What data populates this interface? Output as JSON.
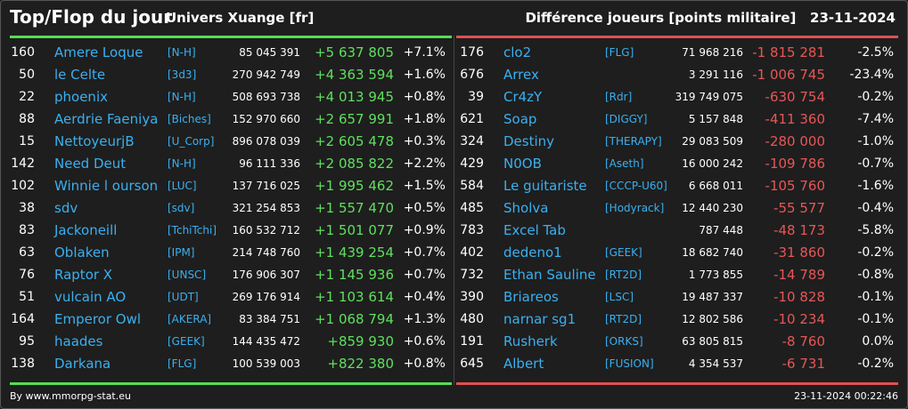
{
  "header": {
    "title": "Top/Flop du jour",
    "subtitle": "Univers Xuange [fr]",
    "metric": "Différence joueurs [points militaire]",
    "date": "23-11-2024"
  },
  "colors": {
    "positive": "#5ee05e",
    "negative": "#e85656",
    "link": "#3ab0f0",
    "background": "#1e1e1e"
  },
  "top": [
    {
      "rank": "160",
      "name": "Amere Loque",
      "tag": "[N-H]",
      "points": "85 045 391",
      "delta": "+5 637 805",
      "pct": "+7.1%"
    },
    {
      "rank": "50",
      "name": "le Celte",
      "tag": "[3d3]",
      "points": "270 942 749",
      "delta": "+4 363 594",
      "pct": "+1.6%"
    },
    {
      "rank": "22",
      "name": "phoenix",
      "tag": "[N-H]",
      "points": "508 693 738",
      "delta": "+4 013 945",
      "pct": "+0.8%"
    },
    {
      "rank": "88",
      "name": "Aerdrie Faeniya",
      "tag": "[Biches]",
      "points": "152 970 660",
      "delta": "+2 657 991",
      "pct": "+1.8%"
    },
    {
      "rank": "15",
      "name": "NettoyeurjB",
      "tag": "[U_Corp]",
      "points": "896 078 039",
      "delta": "+2 605 478",
      "pct": "+0.3%"
    },
    {
      "rank": "142",
      "name": "Need Deut",
      "tag": "[N-H]",
      "points": "96 111 336",
      "delta": "+2 085 822",
      "pct": "+2.2%"
    },
    {
      "rank": "102",
      "name": "Winnie l ourson",
      "tag": "[LUC]",
      "points": "137 716 025",
      "delta": "+1 995 462",
      "pct": "+1.5%"
    },
    {
      "rank": "38",
      "name": "sdv",
      "tag": "[sdv]",
      "points": "321 254 853",
      "delta": "+1 557 470",
      "pct": "+0.5%"
    },
    {
      "rank": "83",
      "name": "Jackoneill",
      "tag": "[TchiTchi]",
      "points": "160 532 712",
      "delta": "+1 501 077",
      "pct": "+0.9%"
    },
    {
      "rank": "63",
      "name": "Oblaken",
      "tag": "[IPM]",
      "points": "214 748 760",
      "delta": "+1 439 254",
      "pct": "+0.7%"
    },
    {
      "rank": "76",
      "name": "Raptor X",
      "tag": "[UNSC]",
      "points": "176 906 307",
      "delta": "+1 145 936",
      "pct": "+0.7%"
    },
    {
      "rank": "51",
      "name": "vulcain AO",
      "tag": "[UDT]",
      "points": "269 176 914",
      "delta": "+1 103 614",
      "pct": "+0.4%"
    },
    {
      "rank": "164",
      "name": "Emperor Owl",
      "tag": "[AKERA]",
      "points": "83 384 751",
      "delta": "+1 068 794",
      "pct": "+1.3%"
    },
    {
      "rank": "95",
      "name": "haades",
      "tag": "[GEEK]",
      "points": "144 435 472",
      "delta": "+859 930",
      "pct": "+0.6%"
    },
    {
      "rank": "138",
      "name": "Darkana",
      "tag": "[FLG]",
      "points": "100 539 003",
      "delta": "+822 380",
      "pct": "+0.8%"
    }
  ],
  "flop": [
    {
      "rank": "176",
      "name": "clo2",
      "tag": "[FLG]",
      "points": "71 968 216",
      "delta": "-1 815 281",
      "pct": "-2.5%"
    },
    {
      "rank": "676",
      "name": "Arrex",
      "tag": "",
      "points": "3 291 116",
      "delta": "-1 006 745",
      "pct": "-23.4%"
    },
    {
      "rank": "39",
      "name": "Cr4zY",
      "tag": "[Rdr]",
      "points": "319 749 075",
      "delta": "-630 754",
      "pct": "-0.2%"
    },
    {
      "rank": "621",
      "name": "Soap",
      "tag": "[DIGGY]",
      "points": "5 157 848",
      "delta": "-411 360",
      "pct": "-7.4%"
    },
    {
      "rank": "324",
      "name": "Destiny",
      "tag": "[THERAPY]",
      "points": "29 083 509",
      "delta": "-280 000",
      "pct": "-1.0%"
    },
    {
      "rank": "429",
      "name": "N0OB",
      "tag": "[Aseth]",
      "points": "16 000 242",
      "delta": "-109 786",
      "pct": "-0.7%"
    },
    {
      "rank": "584",
      "name": "Le guitariste",
      "tag": "[CCCP-U60]",
      "points": "6 668 011",
      "delta": "-105 760",
      "pct": "-1.6%"
    },
    {
      "rank": "485",
      "name": "Sholva",
      "tag": "[Hodyrack]",
      "points": "12 440 230",
      "delta": "-55 577",
      "pct": "-0.4%"
    },
    {
      "rank": "783",
      "name": "Excel Tab",
      "tag": "",
      "points": "787 448",
      "delta": "-48 173",
      "pct": "-5.8%"
    },
    {
      "rank": "402",
      "name": "dedeno1",
      "tag": "[GEEK]",
      "points": "18 682 740",
      "delta": "-31 860",
      "pct": "-0.2%"
    },
    {
      "rank": "732",
      "name": "Ethan Sauline",
      "tag": "[RT2D]",
      "points": "1 773 855",
      "delta": "-14 789",
      "pct": "-0.8%"
    },
    {
      "rank": "390",
      "name": "Briareos",
      "tag": "[LSC]",
      "points": "19 487 337",
      "delta": "-10 828",
      "pct": "-0.1%"
    },
    {
      "rank": "480",
      "name": "narnar sg1",
      "tag": "[RT2D]",
      "points": "12 802 586",
      "delta": "-10 234",
      "pct": "-0.1%"
    },
    {
      "rank": "191",
      "name": "Rusherk",
      "tag": "[ORKS]",
      "points": "63 805 815",
      "delta": "-8 760",
      "pct": "0.0%"
    },
    {
      "rank": "645",
      "name": "Albert",
      "tag": "[FUSION]",
      "points": "4 354 537",
      "delta": "-6 731",
      "pct": "-0.2%"
    }
  ],
  "footer": {
    "credit": "By www.mmorpg-stat.eu",
    "timestamp": "23-11-2024 00:22:46"
  }
}
